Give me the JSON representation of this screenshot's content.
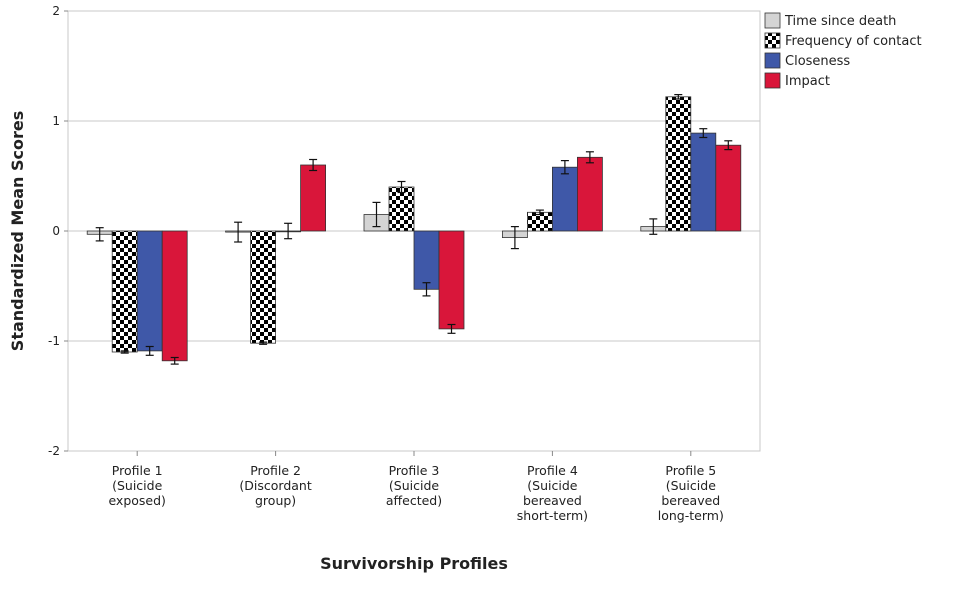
{
  "chart_data": {
    "type": "bar",
    "title": "",
    "xlabel": "Survivorship Profiles",
    "ylabel": "Standardized Mean Scores",
    "ylim": [
      -2,
      2
    ],
    "yticks": [
      "-2",
      "-1",
      "0",
      "1",
      "2"
    ],
    "ytick_values": [
      -2,
      -1,
      0,
      1,
      2
    ],
    "grid": true,
    "legend_position": "top-right",
    "categories": [
      [
        "Profile 1",
        "(Suicide",
        "exposed)"
      ],
      [
        "Profile 2",
        "(Discordant",
        "group)"
      ],
      [
        "Profile 3",
        "(Suicide",
        "affected)"
      ],
      [
        "Profile 4",
        "(Suicide",
        "bereaved",
        "short-term)"
      ],
      [
        "Profile 5",
        "(Suicide",
        "bereaved",
        "long-term)"
      ]
    ],
    "series": [
      {
        "name": "Time since death",
        "color": "#d4d4d4",
        "pattern": "solid",
        "values": [
          -0.03,
          -0.01,
          0.15,
          -0.06,
          0.04
        ],
        "errors": [
          0.06,
          0.09,
          0.11,
          0.1,
          0.07
        ]
      },
      {
        "name": "Frequency of contact",
        "color": "#000000",
        "pattern": "checker",
        "values": [
          -1.1,
          -1.02,
          0.4,
          0.17,
          1.22
        ],
        "errors": [
          0.01,
          0.01,
          0.05,
          0.02,
          0.02
        ]
      },
      {
        "name": "Closeness",
        "color": "#3f58a8",
        "pattern": "solid",
        "values": [
          -1.09,
          0.0,
          -0.53,
          0.58,
          0.89
        ],
        "errors": [
          0.04,
          0.07,
          0.06,
          0.06,
          0.04
        ]
      },
      {
        "name": "Impact",
        "color": "#d9163a",
        "pattern": "solid",
        "values": [
          -1.18,
          0.6,
          -0.89,
          0.67,
          0.78
        ],
        "errors": [
          0.03,
          0.05,
          0.04,
          0.05,
          0.04
        ]
      }
    ]
  }
}
